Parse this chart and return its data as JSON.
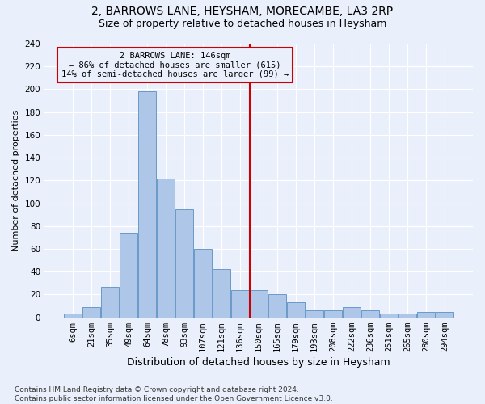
{
  "title": "2, BARROWS LANE, HEYSHAM, MORECAMBE, LA3 2RP",
  "subtitle": "Size of property relative to detached houses in Heysham",
  "xlabel": "Distribution of detached houses by size in Heysham",
  "ylabel": "Number of detached properties",
  "categories": [
    "6sqm",
    "21sqm",
    "35sqm",
    "49sqm",
    "64sqm",
    "78sqm",
    "93sqm",
    "107sqm",
    "121sqm",
    "136sqm",
    "150sqm",
    "165sqm",
    "179sqm",
    "193sqm",
    "208sqm",
    "222sqm",
    "236sqm",
    "251sqm",
    "265sqm",
    "280sqm",
    "294sqm"
  ],
  "values": [
    3,
    9,
    27,
    74,
    198,
    122,
    95,
    60,
    42,
    24,
    24,
    20,
    13,
    6,
    6,
    9,
    6,
    3,
    3,
    5,
    5
  ],
  "bar_color": "#aec6e8",
  "bar_edge_color": "#5a8fc2",
  "background_color": "#eaf0fb",
  "grid_color": "#ffffff",
  "property_label": "2 BARROWS LANE: 146sqm",
  "pct_smaller": 86,
  "n_smaller": 615,
  "pct_larger": 14,
  "n_larger": 99,
  "vline_x_index": 9.5,
  "annotation_box_color": "#cc0000",
  "ylim": [
    0,
    240
  ],
  "yticks": [
    0,
    20,
    40,
    60,
    80,
    100,
    120,
    140,
    160,
    180,
    200,
    220,
    240
  ],
  "footer": "Contains HM Land Registry data © Crown copyright and database right 2024.\nContains public sector information licensed under the Open Government Licence v3.0.",
  "title_fontsize": 10,
  "subtitle_fontsize": 9,
  "xlabel_fontsize": 9,
  "ylabel_fontsize": 8,
  "tick_fontsize": 7.5,
  "footer_fontsize": 6.5
}
